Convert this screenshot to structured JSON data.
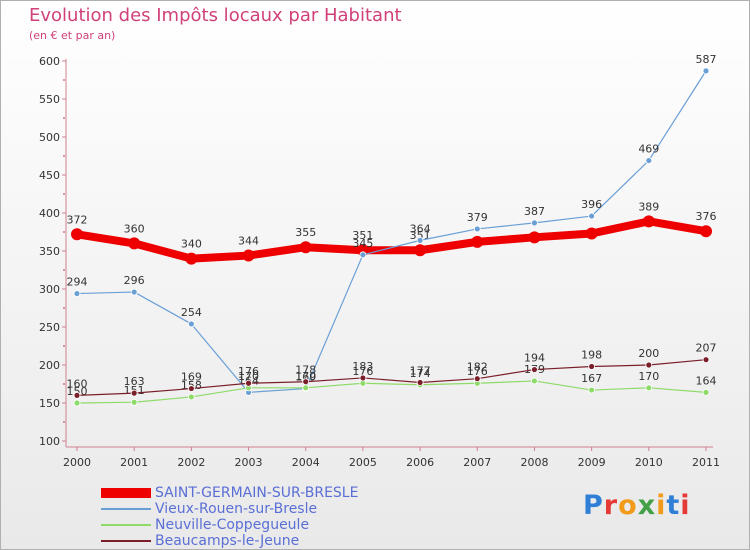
{
  "title": "Evolution des Impôts locaux par Habitant",
  "subtitle": "(en € et par an)",
  "logo": {
    "text": "Proxiti",
    "colors": [
      "#2f7fd6",
      "#e53935",
      "#f29b1b",
      "#43a047",
      "#f29b1b",
      "#2f7fd6",
      "#e53935"
    ]
  },
  "chart_data": {
    "type": "line",
    "x": [
      "2000",
      "2001",
      "2002",
      "2003",
      "2004",
      "2005",
      "2006",
      "2007",
      "2008",
      "2009",
      "2010",
      "2011"
    ],
    "ylim": [
      100,
      600
    ],
    "yticks": [
      100,
      150,
      200,
      250,
      300,
      350,
      400,
      450,
      500,
      550,
      600
    ],
    "grid": false,
    "series": [
      {
        "name": "SAINT-GERMAIN-SUR-BRESLE",
        "color": "#ee0000",
        "values": [
          372,
          360,
          340,
          344,
          355,
          351,
          351,
          362,
          368,
          373,
          389,
          376
        ],
        "labels": [
          "372",
          "360",
          "340",
          "344",
          "355",
          "351",
          "351",
          "",
          "",
          "",
          "389",
          "376"
        ]
      },
      {
        "name": "Vieux-Rouen-sur-Bresle",
        "color": "#6a9fd6",
        "values": [
          294,
          296,
          254,
          164,
          169,
          345,
          364,
          379,
          387,
          396,
          469,
          587
        ],
        "labels": [
          "294",
          "296",
          "254",
          "164",
          "169",
          "345",
          "364",
          "379",
          "387",
          "396",
          "469",
          "587"
        ]
      },
      {
        "name": "Neuville-Coppegueule",
        "color": "#8edb6a",
        "values": [
          150,
          151,
          158,
          170,
          170,
          176,
          174,
          176,
          179,
          167,
          170,
          164
        ],
        "labels": [
          "150",
          "151",
          "158",
          "170",
          "170",
          "176",
          "174",
          "176",
          "179",
          "167",
          "170",
          "164"
        ]
      },
      {
        "name": "Beaucamps-le-Jeune",
        "color": "#7a1f2a",
        "values": [
          160,
          163,
          169,
          176,
          178,
          183,
          177,
          182,
          194,
          198,
          200,
          207
        ],
        "labels": [
          "160",
          "163",
          "169",
          "176",
          "178",
          "183",
          "177",
          "182",
          "194",
          "198",
          "200",
          "207"
        ]
      }
    ]
  }
}
